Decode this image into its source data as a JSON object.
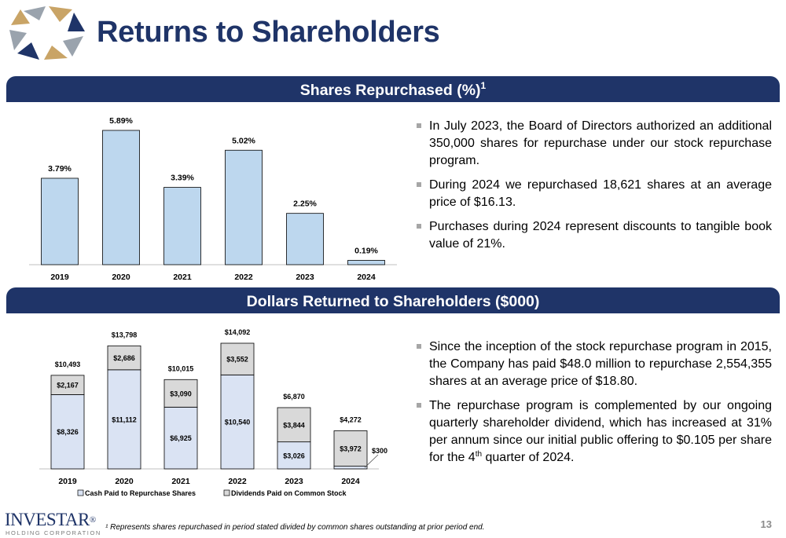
{
  "header": {
    "title": "Returns to Shareholders",
    "logo_icon": "star-emblem-icon"
  },
  "section1": {
    "banner_title": "Shares Repurchased (%)",
    "banner_sup": "1",
    "bullets": [
      "In July 2023, the Board of Directors authorized an additional 350,000 shares for repurchase under our stock repurchase program.",
      "During 2024 we repurchased 18,621 shares at an average price of $16.13.",
      "Purchases during 2024 represent discounts to tangible book value of 21%."
    ]
  },
  "section2": {
    "banner_title": "Dollars Returned to Shareholders ($000)",
    "bullet1": "Since the inception of the stock repurchase program in 2015, the Company has paid $48.0 million to repurchase 2,554,355 shares at an average price of $18.80.",
    "bullet2_pre": "The repurchase program is complemented by our ongoing quarterly shareholder dividend, which has increased at 31% per annum since our initial public offering to $0.105 per share for the 4",
    "bullet2_sup": "th",
    "bullet2_post": " quarter of 2024."
  },
  "chart_data": [
    {
      "type": "bar",
      "categories": [
        "2019",
        "2020",
        "2021",
        "2022",
        "2023",
        "2024"
      ],
      "values": [
        3.79,
        5.89,
        3.39,
        5.02,
        2.25,
        0.19
      ],
      "labels": [
        "3.79%",
        "5.89%",
        "3.39%",
        "5.02%",
        "2.25%",
        "0.19%"
      ],
      "ylim": [
        0,
        5.89
      ],
      "colors": {
        "bar": "#bdd7ee",
        "stroke": "#000000"
      }
    },
    {
      "type": "bar",
      "stacked": true,
      "categories": [
        "2019",
        "2020",
        "2021",
        "2022",
        "2023",
        "2024"
      ],
      "series": [
        {
          "name": "Cash Paid to Repurchase Shares",
          "values": [
            8326,
            11112,
            6925,
            10540,
            3026,
            300
          ],
          "labels": [
            "$8,326",
            "$11,112",
            "$6,925",
            "$10,540",
            "$3,026",
            "$300"
          ],
          "color": "#dae3f3"
        },
        {
          "name": "Dividends Paid on Common Stock",
          "values": [
            2167,
            2686,
            3090,
            3552,
            3844,
            3972
          ],
          "labels": [
            "$2,167",
            "$2,686",
            "$3,090",
            "$3,552",
            "$3,844",
            "$3,972"
          ],
          "color": "#d9d9d9"
        }
      ],
      "totals": [
        "$10,493",
        "$13,798",
        "$10,015",
        "$14,092",
        "$6,870",
        "$4,272"
      ],
      "ylim": [
        0,
        14092
      ],
      "legend": "bottom"
    }
  ],
  "footer": {
    "brand_name": "INVESTAR",
    "brand_mark": "®",
    "brand_sub": "HOLDING CORPORATION",
    "footnote": "¹ Represents shares repurchased in period stated divided by common shares outstanding at prior period end.",
    "page_number": "13"
  }
}
